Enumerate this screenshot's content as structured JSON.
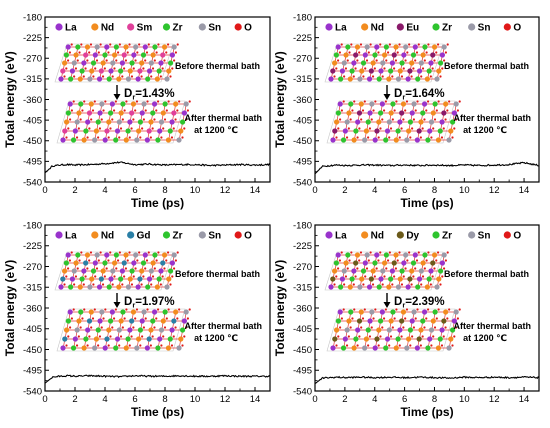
{
  "chart_data": [
    {
      "type": "line",
      "panel": "top-left",
      "xlabel": "Time (ps)",
      "ylabel": "Total energy (eV)",
      "xlim": [
        0,
        15
      ],
      "ylim": [
        -540,
        -180
      ],
      "xticks": [
        0,
        2,
        4,
        6,
        8,
        10,
        12,
        14
      ],
      "yticks": [
        -180,
        -225,
        -270,
        -315,
        -360,
        -405,
        -450,
        -495,
        -540
      ],
      "grid": false,
      "legend_position": "top",
      "legend": [
        {
          "label": "La",
          "color": "#9933cc"
        },
        {
          "label": "Nd",
          "color": "#f28c1f"
        },
        {
          "label": "Sm",
          "color": "#e0409a"
        },
        {
          "label": "Zr",
          "color": "#2ec42e"
        },
        {
          "label": "Sn",
          "color": "#9a9aa8"
        },
        {
          "label": "O",
          "color": "#e01818"
        }
      ],
      "annotations": {
        "before": "Before thermal bath",
        "after_line1": "After thermal bath",
        "after_line2": "at 1200 ℃",
        "df_symbol": "D",
        "df_sub": "r",
        "df_value": "=1.43%"
      },
      "series": [
        {
          "mean": -503,
          "x": [
            0,
            0.5,
            1,
            1.5,
            2,
            3,
            4,
            5,
            6,
            7,
            8,
            9,
            10,
            11,
            12,
            13,
            14,
            15
          ],
          "y": [
            -520,
            -505,
            -503,
            -502,
            -503,
            -502,
            -500,
            -497,
            -502,
            -501,
            -503,
            -502,
            -502,
            -504,
            -503,
            -502,
            -503,
            -502
          ]
        }
      ]
    },
    {
      "type": "line",
      "panel": "top-right",
      "xlabel": "Time (ps)",
      "ylabel": "Total energy (eV)",
      "xlim": [
        0,
        15
      ],
      "ylim": [
        -540,
        -180
      ],
      "xticks": [
        0,
        2,
        4,
        6,
        8,
        10,
        12,
        14
      ],
      "yticks": [
        -180,
        -225,
        -270,
        -315,
        -360,
        -405,
        -450,
        -495,
        -540
      ],
      "grid": false,
      "legend_position": "top",
      "legend": [
        {
          "label": "La",
          "color": "#9933cc"
        },
        {
          "label": "Nd",
          "color": "#f28c1f"
        },
        {
          "label": "Eu",
          "color": "#8a1a6a"
        },
        {
          "label": "Zr",
          "color": "#2ec42e"
        },
        {
          "label": "Sn",
          "color": "#9a9aa8"
        },
        {
          "label": "O",
          "color": "#e01818"
        }
      ],
      "annotations": {
        "before": "Before thermal bath",
        "after_line1": "After thermal bath",
        "after_line2": "at 1200 ℃",
        "df_symbol": "D",
        "df_sub": "r",
        "df_value": "=1.64%"
      },
      "series": [
        {
          "mean": -504,
          "x": [
            0,
            0.5,
            1,
            1.5,
            2,
            3,
            4,
            5,
            6,
            7,
            8,
            9,
            10,
            11,
            12,
            13,
            14,
            15
          ],
          "y": [
            -522,
            -506,
            -504,
            -503,
            -504,
            -503,
            -503,
            -504,
            -503,
            -504,
            -503,
            -504,
            -503,
            -504,
            -503,
            -502,
            -498,
            -504
          ]
        }
      ]
    },
    {
      "type": "line",
      "panel": "bottom-left",
      "xlabel": "Time (ps)",
      "ylabel": "Total energy (eV)",
      "xlim": [
        0,
        15
      ],
      "ylim": [
        -540,
        -180
      ],
      "xticks": [
        0,
        2,
        4,
        6,
        8,
        10,
        12,
        14
      ],
      "yticks": [
        -180,
        -225,
        -270,
        -315,
        -360,
        -405,
        -450,
        -495,
        -540
      ],
      "grid": false,
      "legend_position": "top",
      "legend": [
        {
          "label": "La",
          "color": "#9933cc"
        },
        {
          "label": "Nd",
          "color": "#f28c1f"
        },
        {
          "label": "Gd",
          "color": "#2a7fa6"
        },
        {
          "label": "Zr",
          "color": "#2ec42e"
        },
        {
          "label": "Sn",
          "color": "#9a9aa8"
        },
        {
          "label": "O",
          "color": "#e01818"
        }
      ],
      "annotations": {
        "before": "Before thermal bath",
        "after_line1": "After thermal bath",
        "after_line2": "at 1200 ℃",
        "df_symbol": "D",
        "df_sub": "r",
        "df_value": "=1.97%"
      },
      "series": [
        {
          "mean": -508,
          "x": [
            0,
            0.5,
            1,
            1.5,
            2,
            3,
            4,
            5,
            6,
            7,
            8,
            9,
            10,
            11,
            12,
            13,
            14,
            15
          ],
          "y": [
            -523,
            -510,
            -508,
            -507,
            -508,
            -507,
            -508,
            -509,
            -507,
            -508,
            -508,
            -507,
            -508,
            -508,
            -507,
            -508,
            -508,
            -508
          ]
        }
      ]
    },
    {
      "type": "line",
      "panel": "bottom-right",
      "xlabel": "Time (ps)",
      "ylabel": "Total energy (eV)",
      "xlim": [
        0,
        15
      ],
      "ylim": [
        -540,
        -180
      ],
      "xticks": [
        0,
        2,
        4,
        6,
        8,
        10,
        12,
        14
      ],
      "yticks": [
        -180,
        -225,
        -270,
        -315,
        -360,
        -405,
        -450,
        -495,
        -540
      ],
      "grid": false,
      "legend_position": "top",
      "legend": [
        {
          "label": "La",
          "color": "#9933cc"
        },
        {
          "label": "Nd",
          "color": "#f28c1f"
        },
        {
          "label": "Dy",
          "color": "#6b5a1a"
        },
        {
          "label": "Zr",
          "color": "#2ec42e"
        },
        {
          "label": "Sn",
          "color": "#9a9aa8"
        },
        {
          "label": "O",
          "color": "#e01818"
        }
      ],
      "annotations": {
        "before": "Before thermal bath",
        "after_line1": "After thermal bath",
        "after_line2": "at 1200 ℃",
        "df_symbol": "D",
        "df_sub": "r",
        "df_value": "=2.39%"
      },
      "series": [
        {
          "mean": -511,
          "x": [
            0,
            0.5,
            1,
            1.5,
            2,
            3,
            4,
            5,
            6,
            7,
            8,
            9,
            10,
            11,
            12,
            13,
            14,
            15
          ],
          "y": [
            -524,
            -512,
            -511,
            -510,
            -511,
            -510,
            -511,
            -510,
            -511,
            -510,
            -511,
            -512,
            -510,
            -511,
            -510,
            -511,
            -510,
            -511
          ]
        }
      ]
    }
  ]
}
